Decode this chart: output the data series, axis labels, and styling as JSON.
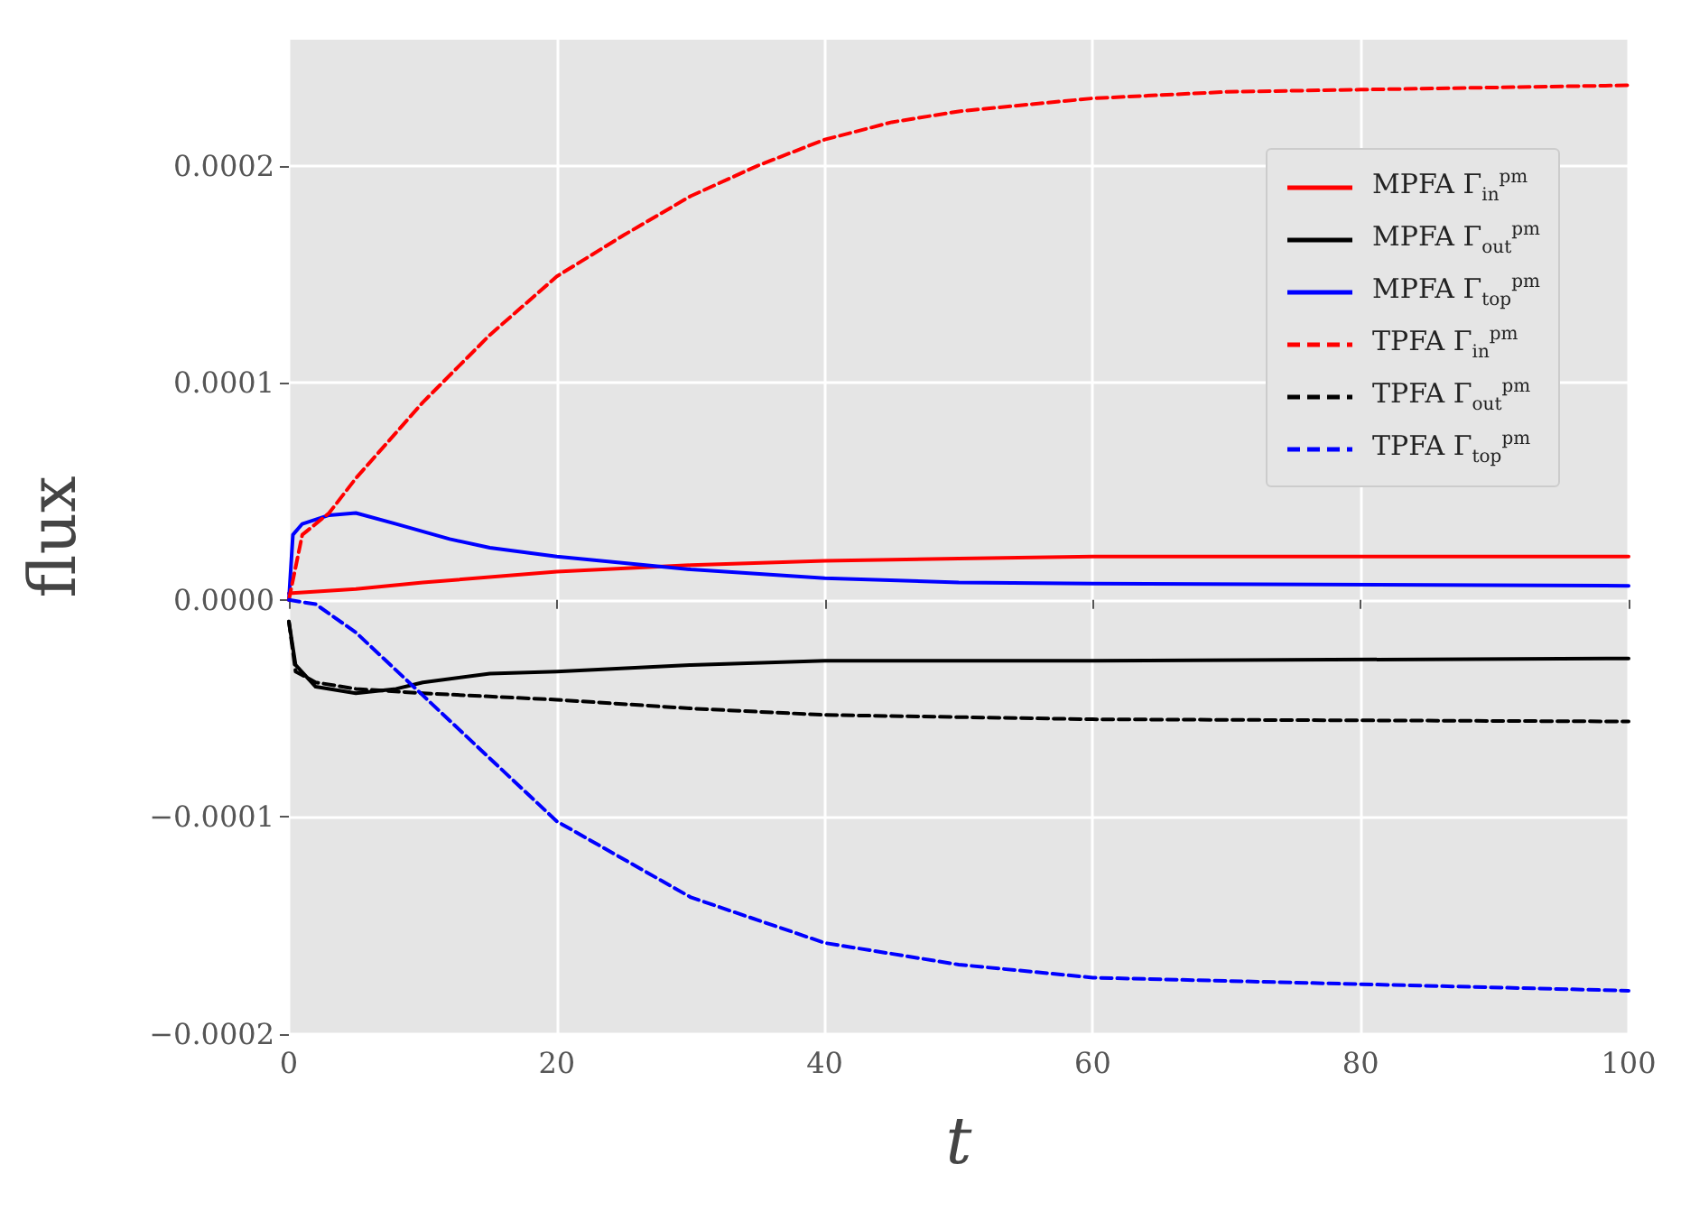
{
  "chart_data": {
    "type": "line",
    "xlabel": "t",
    "ylabel": "flux",
    "xlim": [
      0,
      100
    ],
    "xticks": [
      0,
      20,
      40,
      60,
      80,
      100
    ],
    "ylim": [
      -0.0002,
      0.000258
    ],
    "yticks": [
      {
        "value": -0.0002,
        "label": "−0.0002"
      },
      {
        "value": -0.0001,
        "label": "−0.0001"
      },
      {
        "value": 0,
        "label": "0.0000"
      },
      0.0001,
      0.0002
    ],
    "grid": true,
    "legend": "top right",
    "marker": "none",
    "series": [
      {
        "name": "MPFA Γ$_{in}$$^{pm}$",
        "color": "#ff0000",
        "line_style": "solid",
        "x": [
          0,
          5,
          10,
          20,
          30,
          40,
          50,
          60,
          80,
          100
        ],
        "values": [
          3e-06,
          5e-06,
          8e-06,
          1.3e-05,
          1.6e-05,
          1.8e-05,
          1.9e-05,
          2e-05,
          2e-05,
          2e-05
        ]
      },
      {
        "name": "MPFA Γ$_{out}$$^{pm}$",
        "color": "#000000",
        "line_style": "solid",
        "x": [
          0,
          0.5,
          2,
          5,
          8,
          10,
          15,
          20,
          30,
          40,
          60,
          100
        ],
        "values": [
          -1e-05,
          -3e-05,
          -4e-05,
          -4.3e-05,
          -4.1e-05,
          -3.8e-05,
          -3.4e-05,
          -3.3e-05,
          -3e-05,
          -2.8e-05,
          -2.8e-05,
          -2.7e-05
        ]
      },
      {
        "name": "MPFA Γ$_{top}$$^{pm}$",
        "color": "#0000ff",
        "line_style": "solid",
        "x": [
          0,
          0.3,
          1,
          3,
          5,
          8,
          12,
          15,
          20,
          30,
          40,
          50,
          60,
          100
        ],
        "values": [
          0,
          3e-05,
          3.5e-05,
          3.9e-05,
          4e-05,
          3.5e-05,
          2.8e-05,
          2.4e-05,
          2e-05,
          1.4e-05,
          1e-05,
          8e-06,
          7.5e-06,
          6.5e-06
        ]
      },
      {
        "name": "TPFA Γ$_{in}$$^{pm}$",
        "color": "#ff0000",
        "line_style": "dashed",
        "x": [
          0,
          1,
          3,
          5,
          10,
          15,
          20,
          25,
          30,
          35,
          40,
          45,
          50,
          60,
          70,
          80,
          90,
          100
        ],
        "values": [
          0,
          3e-05,
          4e-05,
          5.6e-05,
          9.1e-05,
          0.000122,
          0.000149,
          0.000168,
          0.000186,
          0.0002,
          0.000212,
          0.00022,
          0.000225,
          0.000231,
          0.000234,
          0.000235,
          0.000236,
          0.000237
        ]
      },
      {
        "name": "TPFA Γ$_{out}$$^{pm}$",
        "color": "#000000",
        "line_style": "dashed",
        "x": [
          0,
          0.5,
          2,
          5,
          10,
          20,
          30,
          40,
          50,
          60,
          100
        ],
        "values": [
          -1e-05,
          -3.3e-05,
          -3.8e-05,
          -4.1e-05,
          -4.3e-05,
          -4.6e-05,
          -5e-05,
          -5.3e-05,
          -5.4e-05,
          -5.5e-05,
          -5.6e-05
        ]
      },
      {
        "name": "TPFA Γ$_{top}$$^{pm}$",
        "color": "#0000ff",
        "line_style": "dashed",
        "x": [
          0,
          2,
          5,
          10,
          15,
          20,
          30,
          40,
          50,
          60,
          80,
          100
        ],
        "values": [
          0,
          -2e-06,
          -1.5e-05,
          -4.4e-05,
          -7.3e-05,
          -0.000102,
          -0.000137,
          -0.000158,
          -0.000168,
          -0.000174,
          -0.000177,
          -0.00018
        ]
      }
    ]
  }
}
